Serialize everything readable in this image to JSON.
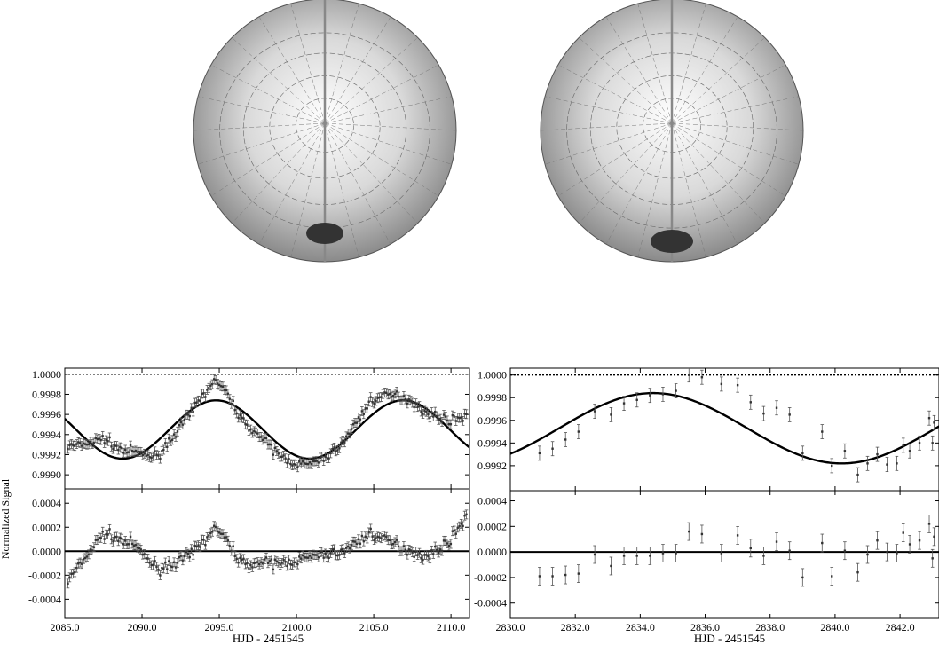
{
  "globes": [
    {
      "name": "left-globe",
      "spot_color": "#333333"
    },
    {
      "name": "right-globe",
      "spot_color": "#333333"
    }
  ],
  "chart_data": [
    {
      "type": "scatter",
      "panel": "left",
      "xlabel": "HJD - 2451545",
      "ylabel": "Normalized Signal",
      "xlim": [
        2085.0,
        2111.2
      ],
      "xticks": [
        "2085.0",
        "2090.0",
        "2095.0",
        "2100.0",
        "2105.0",
        "2110.0"
      ],
      "top": {
        "ylim": [
          0.99886,
          1.00006
        ],
        "yticks": [
          "0.9990",
          "0.9992",
          "0.9994",
          "0.9996",
          "0.9998",
          "1.0000"
        ],
        "reference_line": 1.0,
        "model": {
          "mean": 0.99945,
          "amplitude": 0.00029,
          "period": 12.1,
          "peak_at": 2094.8
        },
        "observations": {
          "x_start": 2085.2,
          "x_end": 2111.0,
          "n": 230,
          "scatter": 4e-05
        }
      },
      "bottom": {
        "ylim": [
          -0.00056,
          0.00052
        ],
        "yticks": [
          "-0.0004",
          "-0.0002",
          "0.0000",
          "0.0002",
          "0.0004"
        ],
        "reference_line": 0.0,
        "residual_trend": [
          [
            2085.2,
            -0.00025
          ],
          [
            2087.5,
            0.00015
          ],
          [
            2089.5,
            5e-05
          ],
          [
            2091.0,
            -0.00015
          ],
          [
            2093.0,
            -5e-05
          ],
          [
            2094.8,
            0.0002
          ],
          [
            2096.5,
            -0.0001
          ],
          [
            2099.0,
            -0.0001
          ],
          [
            2101.0,
            -5e-05
          ],
          [
            2103.0,
            0.0
          ],
          [
            2104.8,
            0.00015
          ],
          [
            2106.5,
            5e-05
          ],
          [
            2108.5,
            -5e-05
          ],
          [
            2110.0,
            0.0001
          ],
          [
            2111.0,
            0.0003
          ]
        ]
      }
    },
    {
      "type": "scatter",
      "panel": "right",
      "xlabel": "HJD - 2451545",
      "xlim": [
        2830.0,
        2843.2
      ],
      "xticks": [
        "2830.0",
        "2832.0",
        "2834.0",
        "2836.0",
        "2838.0",
        "2840.0",
        "2842.0"
      ],
      "top": {
        "ylim": [
          0.99898,
          1.00006
        ],
        "yticks": [
          "0.9992",
          "0.9994",
          "0.9996",
          "0.9998",
          "1.0000"
        ],
        "reference_line": 1.0,
        "model": {
          "mean": 0.99953,
          "amplitude": 0.00031,
          "period": 11.6,
          "peak_at": 2834.4
        }
      },
      "bottom": {
        "ylim": [
          -0.00052,
          0.00048
        ],
        "yticks": [
          "-0.0004",
          "-0.0002",
          "0.0000",
          "0.0002",
          "0.0004"
        ],
        "reference_line": 0.0
      },
      "points": [
        {
          "x": 2830.9,
          "y": 0.99931,
          "r": -0.00019
        },
        {
          "x": 2831.3,
          "y": 0.99935,
          "r": -0.00019
        },
        {
          "x": 2831.7,
          "y": 0.99943,
          "r": -0.00018
        },
        {
          "x": 2832.1,
          "y": 0.9995,
          "r": -0.00017
        },
        {
          "x": 2832.6,
          "y": 0.99968,
          "r": -2e-05
        },
        {
          "x": 2833.1,
          "y": 0.99965,
          "r": -0.00011
        },
        {
          "x": 2833.5,
          "y": 0.99975,
          "r": -3e-05
        },
        {
          "x": 2833.9,
          "y": 0.99978,
          "r": -3e-05
        },
        {
          "x": 2834.3,
          "y": 0.99982,
          "r": -3e-05
        },
        {
          "x": 2834.7,
          "y": 0.99983,
          "r": -1e-05
        },
        {
          "x": 2835.1,
          "y": 0.99986,
          "r": -1e-05
        },
        {
          "x": 2835.5,
          "y": 1.0,
          "r": 0.00016
        },
        {
          "x": 2835.9,
          "y": 0.99998,
          "r": 0.00014
        },
        {
          "x": 2836.5,
          "y": 0.99992,
          "r": -1e-05
        },
        {
          "x": 2837.0,
          "y": 0.99991,
          "r": 0.00013
        },
        {
          "x": 2837.4,
          "y": 0.99976,
          "r": 3e-05
        },
        {
          "x": 2837.8,
          "y": 0.99966,
          "r": -3e-05
        },
        {
          "x": 2838.2,
          "y": 0.99971,
          "r": 8e-05
        },
        {
          "x": 2838.6,
          "y": 0.99965,
          "r": 1e-05
        },
        {
          "x": 2839.0,
          "y": 0.99931,
          "r": -0.0002
        },
        {
          "x": 2839.6,
          "y": 0.9995,
          "r": 7e-05
        },
        {
          "x": 2839.9,
          "y": 0.9992,
          "r": -0.00019
        },
        {
          "x": 2840.3,
          "y": 0.99933,
          "r": 1e-05
        },
        {
          "x": 2840.7,
          "y": 0.99912,
          "r": -0.00016
        },
        {
          "x": 2841.0,
          "y": 0.99922,
          "r": -2e-05
        },
        {
          "x": 2841.3,
          "y": 0.9993,
          "r": 9e-05
        },
        {
          "x": 2841.6,
          "y": 0.99921,
          "r": 0.0
        },
        {
          "x": 2841.9,
          "y": 0.99922,
          "r": -1e-05
        },
        {
          "x": 2842.1,
          "y": 0.99938,
          "r": 0.00015
        },
        {
          "x": 2842.3,
          "y": 0.99933,
          "r": 6e-05
        },
        {
          "x": 2842.6,
          "y": 0.9994,
          "r": 9e-05
        },
        {
          "x": 2842.9,
          "y": 0.99962,
          "r": 0.00022
        },
        {
          "x": 2843.0,
          "y": 0.9994,
          "r": -5e-05
        },
        {
          "x": 2843.05,
          "y": 0.99958,
          "r": 0.00012
        }
      ]
    }
  ]
}
